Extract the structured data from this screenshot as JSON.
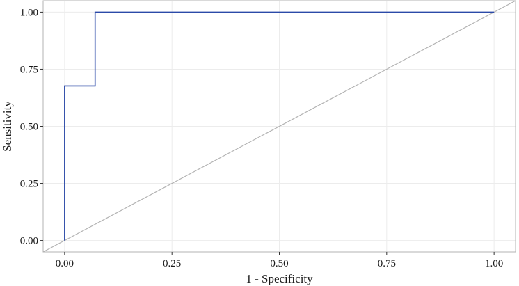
{
  "chart_data": {
    "type": "line",
    "title": "",
    "xlabel": "1 - Specificity",
    "ylabel": "Sensitivity",
    "xlim": [
      -0.05,
      1.05
    ],
    "ylim": [
      -0.05,
      1.05
    ],
    "x_ticks": [
      0,
      0.25,
      0.5,
      0.75,
      1
    ],
    "x_tick_labels": [
      "0.00",
      "0.25",
      "0.50",
      "0.75",
      "1.00"
    ],
    "y_ticks": [
      0,
      0.25,
      0.5,
      0.75,
      1
    ],
    "y_tick_labels": [
      "0.00",
      "0.25",
      "0.50",
      "0.75",
      "1.00"
    ],
    "grid": true,
    "series": [
      {
        "kind": "step",
        "color": "#2b4aa8",
        "points": [
          {
            "x": 0.0,
            "y": 0.0
          },
          {
            "x": 0.0,
            "y": 0.677
          },
          {
            "x": 0.071,
            "y": 0.677
          },
          {
            "x": 0.071,
            "y": 1.0
          },
          {
            "x": 1.0,
            "y": 1.0
          }
        ]
      },
      {
        "kind": "reference",
        "color": "#b3b3b3",
        "points": [
          {
            "x": -0.05,
            "y": -0.05
          },
          {
            "x": 1.05,
            "y": 1.05
          }
        ]
      }
    ],
    "colors": {
      "grid": "#ececec",
      "panel_border": "#b3b3b3",
      "background": "#ffffff"
    }
  }
}
